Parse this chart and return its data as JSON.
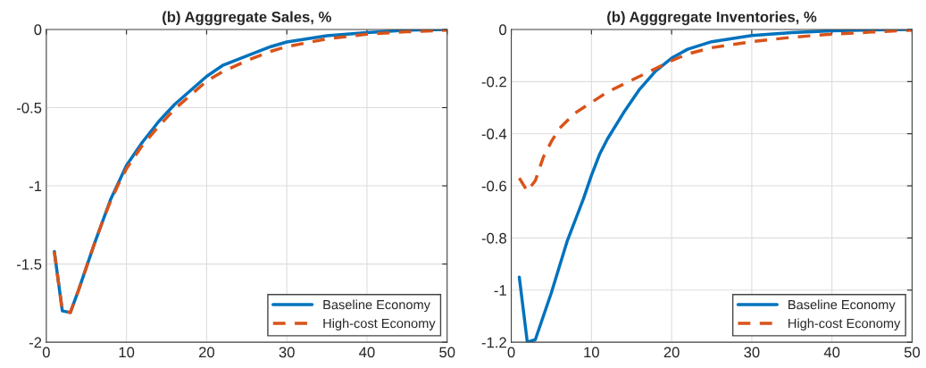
{
  "chart_data": [
    {
      "type": "line",
      "title": "(b) Agggregate Sales, %",
      "xlim": [
        0,
        50
      ],
      "xticks": [
        0,
        10,
        20,
        30,
        40,
        50
      ],
      "ylim": [
        -2,
        0
      ],
      "yticks": [
        -2,
        -1.5,
        -1,
        -0.5,
        0
      ],
      "grid": true,
      "legend": "bottom right",
      "x": [
        1,
        2,
        3,
        4,
        5,
        6,
        7,
        8,
        9,
        10,
        12,
        14,
        16,
        18,
        20,
        22,
        25,
        28,
        30,
        35,
        40,
        45,
        50
      ],
      "series": [
        {
          "name": "Baseline Economy",
          "color": "#0072bd",
          "line_style": "solid",
          "values": [
            -1.42,
            -1.8,
            -1.81,
            -1.67,
            -1.52,
            -1.37,
            -1.23,
            -1.09,
            -0.98,
            -0.87,
            -0.72,
            -0.59,
            -0.48,
            -0.39,
            -0.3,
            -0.23,
            -0.17,
            -0.11,
            -0.08,
            -0.04,
            -0.02,
            -0.005,
            0
          ]
        },
        {
          "name": "High-cost Economy",
          "color": "#d95319",
          "line_style": "dashed",
          "values": [
            -1.42,
            -1.8,
            -1.81,
            -1.67,
            -1.52,
            -1.37,
            -1.23,
            -1.1,
            -0.99,
            -0.89,
            -0.74,
            -0.62,
            -0.51,
            -0.42,
            -0.33,
            -0.27,
            -0.2,
            -0.14,
            -0.11,
            -0.06,
            -0.03,
            -0.015,
            -0.005
          ]
        }
      ]
    },
    {
      "type": "line",
      "title": "(b) Agggregate Inventories, %",
      "xlim": [
        0,
        50
      ],
      "xticks": [
        0,
        10,
        20,
        30,
        40,
        50
      ],
      "ylim": [
        -1.2,
        0
      ],
      "yticks": [
        -1.2,
        -1,
        -0.8,
        -0.6,
        -0.4,
        -0.2,
        0
      ],
      "grid": true,
      "legend": "bottom right",
      "x": [
        1,
        2,
        3,
        4,
        5,
        6,
        7,
        8,
        9,
        10,
        11,
        12,
        14,
        16,
        18,
        20,
        22,
        25,
        30,
        35,
        40,
        45,
        50
      ],
      "series": [
        {
          "name": "Baseline Economy",
          "color": "#0072bd",
          "line_style": "solid",
          "values": [
            -0.95,
            -1.2,
            -1.19,
            -1.1,
            -1.01,
            -0.91,
            -0.81,
            -0.73,
            -0.65,
            -0.56,
            -0.48,
            -0.42,
            -0.32,
            -0.23,
            -0.16,
            -0.11,
            -0.076,
            -0.047,
            -0.023,
            -0.012,
            -0.005,
            -0.002,
            0
          ]
        },
        {
          "name": "High-cost Economy",
          "color": "#d95319",
          "line_style": "dashed",
          "values": [
            -0.57,
            -0.62,
            -0.58,
            -0.49,
            -0.43,
            -0.38,
            -0.35,
            -0.32,
            -0.3,
            -0.28,
            -0.26,
            -0.24,
            -0.21,
            -0.18,
            -0.15,
            -0.12,
            -0.094,
            -0.07,
            -0.047,
            -0.03,
            -0.018,
            -0.01,
            -0.003
          ]
        }
      ]
    }
  ]
}
